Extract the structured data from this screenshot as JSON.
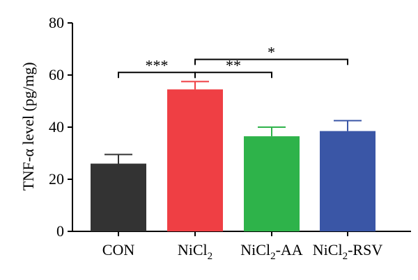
{
  "chart_data": {
    "type": "bar",
    "ylabel": "TNF-α level (pg/mg)",
    "ylim": [
      0,
      80
    ],
    "yticks": [
      0,
      20,
      40,
      60,
      80
    ],
    "categories": [
      {
        "label": "CON",
        "label_base": "CON",
        "label_sub": "",
        "label_suffix": ""
      },
      {
        "label": "NiCl2",
        "label_base": "NiCl",
        "label_sub": "2",
        "label_suffix": ""
      },
      {
        "label": "NiCl2-AA",
        "label_base": "NiCl",
        "label_sub": "2",
        "label_suffix": "-AA"
      },
      {
        "label": "NiCl2-RSV",
        "label_base": "NiCl",
        "label_sub": "2",
        "label_suffix": "-RSV"
      }
    ],
    "values": [
      26,
      54.5,
      36.5,
      38.5
    ],
    "errors": [
      3.5,
      3,
      3.5,
      4
    ],
    "colors": [
      "#333333",
      "#ef3f44",
      "#2eb34a",
      "#3a56a6"
    ],
    "significance": [
      {
        "from": 0,
        "to": 1,
        "y": 61,
        "label": "***"
      },
      {
        "from": 1,
        "to": 2,
        "y": 61,
        "label": "**"
      },
      {
        "from": 1,
        "to": 3,
        "y": 66,
        "label": "*"
      }
    ]
  }
}
